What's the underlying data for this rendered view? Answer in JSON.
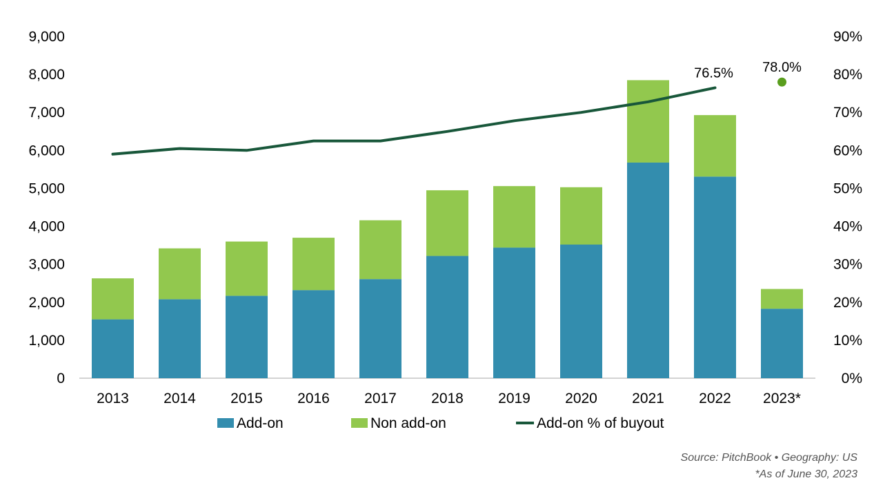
{
  "chart_data": {
    "type": "bar",
    "stacked": true,
    "categories": [
      "2013",
      "2014",
      "2015",
      "2016",
      "2017",
      "2018",
      "2019",
      "2020",
      "2021",
      "2022",
      "2023*"
    ],
    "series": [
      {
        "name": "Add-on",
        "kind": "bar",
        "axis": "left",
        "color": "#338dae",
        "values": [
          1550,
          2080,
          2170,
          2320,
          2610,
          3220,
          3440,
          3520,
          5680,
          5310,
          1830
        ]
      },
      {
        "name": "Non add-on",
        "kind": "bar",
        "axis": "left",
        "color": "#92c84e",
        "values": [
          1080,
          1340,
          1430,
          1380,
          1550,
          1730,
          1620,
          1510,
          2170,
          1620,
          520
        ]
      },
      {
        "name": "Add-on % of buyout",
        "kind": "line",
        "axis": "right",
        "color": "#18573a",
        "values": [
          59.0,
          60.5,
          60.0,
          62.5,
          62.5,
          65.0,
          67.8,
          70.0,
          72.8,
          76.5,
          null
        ]
      }
    ],
    "point": {
      "category": "2023*",
      "value": 78.0,
      "color": "#5a9e1e"
    },
    "annotations": [
      "76.5%",
      "78.0%"
    ],
    "left_axis": {
      "ylim": [
        0,
        9000
      ],
      "ticks": [
        "0",
        "1,000",
        "2,000",
        "3,000",
        "4,000",
        "5,000",
        "6,000",
        "7,000",
        "8,000",
        "9,000"
      ]
    },
    "right_axis": {
      "ylim": [
        0,
        90
      ],
      "ticks": [
        "0%",
        "10%",
        "20%",
        "30%",
        "40%",
        "50%",
        "60%",
        "70%",
        "80%",
        "90%"
      ]
    },
    "grid": false,
    "legend_position": "bottom"
  },
  "source": {
    "line1": "Source: PitchBook •  Geography: US",
    "line2": "*As of June 30, 2023"
  }
}
